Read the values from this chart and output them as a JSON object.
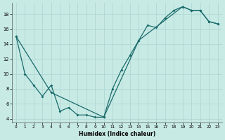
{
  "xlabel": "Humidex (Indice chaleur)",
  "background_color": "#c8eae5",
  "line_color": "#1a6b6b",
  "grid_color": "#b0d8d4",
  "xlim": [
    -0.5,
    23.5
  ],
  "ylim": [
    3.5,
    19.5
  ],
  "xticks": [
    0,
    1,
    2,
    3,
    4,
    5,
    6,
    7,
    8,
    9,
    10,
    11,
    12,
    13,
    14,
    15,
    16,
    17,
    18,
    19,
    20,
    21,
    22,
    23
  ],
  "yticks": [
    4,
    6,
    8,
    10,
    12,
    14,
    16,
    18
  ],
  "series1_x": [
    0,
    1,
    2,
    3,
    4,
    5,
    6,
    7,
    8,
    9,
    10,
    11,
    12,
    13,
    14,
    15,
    16,
    17,
    18,
    19,
    20,
    21,
    22,
    23
  ],
  "series1_y": [
    15,
    10,
    8.5,
    7,
    8.5,
    5,
    5.5,
    4.5,
    4.5,
    4.2,
    4.2,
    8,
    10.5,
    12.5,
    14.5,
    16.5,
    16.2,
    17.5,
    18.5,
    19,
    18.5,
    18.5,
    17,
    16.7
  ],
  "series2_x": [
    0,
    4,
    10,
    14,
    19,
    20,
    21,
    22,
    23
  ],
  "series2_y": [
    15,
    7.5,
    4.2,
    14.5,
    19,
    18.5,
    18.5,
    17,
    16.7
  ],
  "figsize": [
    3.2,
    2.0
  ],
  "dpi": 100
}
